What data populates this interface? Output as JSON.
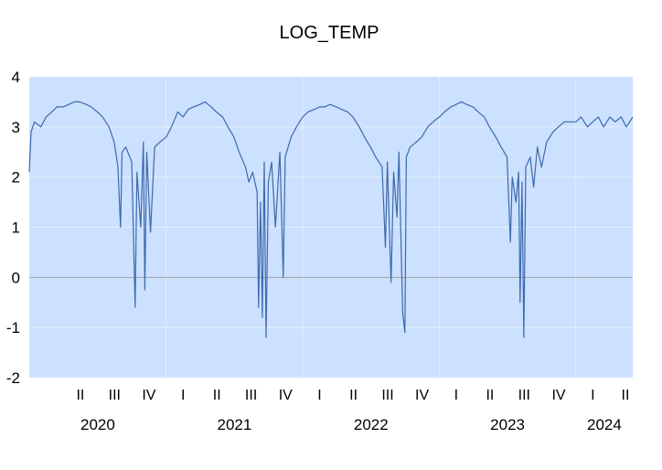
{
  "chart_data": {
    "type": "line",
    "title": "LOG_TEMP",
    "xlabel": "",
    "ylabel": "",
    "ylim": [
      -2,
      4
    ],
    "yticks": [
      -2,
      -1,
      0,
      1,
      2,
      3,
      4
    ],
    "ytick_labels": [
      "-2",
      "-1",
      "0",
      "1",
      "2",
      "3",
      "4"
    ],
    "x_range": [
      "2020-01",
      "2024-06"
    ],
    "quarter_labels": [
      "II",
      "III",
      "IV",
      "I",
      "II",
      "III",
      "IV",
      "I",
      "II",
      "III",
      "IV",
      "I",
      "II",
      "III",
      "IV",
      "I",
      "II"
    ],
    "year_labels": [
      "2020",
      "2021",
      "2022",
      "2023",
      "2024"
    ],
    "grid": true,
    "colors": {
      "plot_background": "#cce0ff",
      "line": "#3d6aad",
      "grid": "#e6effb",
      "zero_line": "#a0a0a0"
    },
    "series": [
      {
        "points": [
          [
            "2020-01-01",
            2.1
          ],
          [
            "2020-01-06",
            2.9
          ],
          [
            "2020-01-15",
            3.1
          ],
          [
            "2020-02-01",
            3.0
          ],
          [
            "2020-02-15",
            3.2
          ],
          [
            "2020-03-01",
            3.3
          ],
          [
            "2020-03-15",
            3.4
          ],
          [
            "2020-04-01",
            3.4
          ],
          [
            "2020-04-15",
            3.45
          ],
          [
            "2020-05-01",
            3.5
          ],
          [
            "2020-05-15",
            3.5
          ],
          [
            "2020-06-01",
            3.45
          ],
          [
            "2020-06-15",
            3.4
          ],
          [
            "2020-07-01",
            3.3
          ],
          [
            "2020-07-15",
            3.2
          ],
          [
            "2020-08-01",
            3.0
          ],
          [
            "2020-08-15",
            2.7
          ],
          [
            "2020-08-25",
            2.2
          ],
          [
            "2020-09-01",
            1.0
          ],
          [
            "2020-09-05",
            2.5
          ],
          [
            "2020-09-15",
            2.6
          ],
          [
            "2020-10-01",
            2.3
          ],
          [
            "2020-10-10",
            -0.6
          ],
          [
            "2020-10-15",
            2.1
          ],
          [
            "2020-10-25",
            1.0
          ],
          [
            "2020-11-01",
            2.7
          ],
          [
            "2020-11-05",
            -0.25
          ],
          [
            "2020-11-10",
            2.5
          ],
          [
            "2020-11-20",
            0.9
          ],
          [
            "2020-12-01",
            2.6
          ],
          [
            "2020-12-15",
            2.7
          ],
          [
            "2021-01-01",
            2.8
          ],
          [
            "2021-01-15",
            3.0
          ],
          [
            "2021-02-01",
            3.3
          ],
          [
            "2021-02-15",
            3.2
          ],
          [
            "2021-03-01",
            3.35
          ],
          [
            "2021-03-15",
            3.4
          ],
          [
            "2021-04-01",
            3.45
          ],
          [
            "2021-04-15",
            3.5
          ],
          [
            "2021-05-01",
            3.4
          ],
          [
            "2021-05-15",
            3.3
          ],
          [
            "2021-06-01",
            3.2
          ],
          [
            "2021-06-15",
            3.0
          ],
          [
            "2021-07-01",
            2.8
          ],
          [
            "2021-07-15",
            2.5
          ],
          [
            "2021-08-01",
            2.2
          ],
          [
            "2021-08-10",
            1.9
          ],
          [
            "2021-08-20",
            2.1
          ],
          [
            "2021-09-01",
            1.7
          ],
          [
            "2021-09-05",
            -0.6
          ],
          [
            "2021-09-10",
            1.5
          ],
          [
            "2021-09-15",
            -0.8
          ],
          [
            "2021-09-20",
            2.3
          ],
          [
            "2021-09-25",
            -1.2
          ],
          [
            "2021-10-01",
            1.9
          ],
          [
            "2021-10-10",
            2.3
          ],
          [
            "2021-10-20",
            1.0
          ],
          [
            "2021-11-01",
            2.5
          ],
          [
            "2021-11-10",
            0.0
          ],
          [
            "2021-11-15",
            2.4
          ],
          [
            "2021-12-01",
            2.8
          ],
          [
            "2021-12-15",
            3.0
          ],
          [
            "2022-01-01",
            3.2
          ],
          [
            "2022-01-15",
            3.3
          ],
          [
            "2022-02-01",
            3.35
          ],
          [
            "2022-02-15",
            3.4
          ],
          [
            "2022-03-01",
            3.4
          ],
          [
            "2022-03-15",
            3.45
          ],
          [
            "2022-04-01",
            3.4
          ],
          [
            "2022-04-15",
            3.35
          ],
          [
            "2022-05-01",
            3.3
          ],
          [
            "2022-05-15",
            3.2
          ],
          [
            "2022-06-01",
            3.0
          ],
          [
            "2022-06-15",
            2.8
          ],
          [
            "2022-07-01",
            2.6
          ],
          [
            "2022-07-15",
            2.4
          ],
          [
            "2022-08-01",
            2.2
          ],
          [
            "2022-08-10",
            0.6
          ],
          [
            "2022-08-15",
            2.3
          ],
          [
            "2022-08-25",
            -0.1
          ],
          [
            "2022-09-01",
            2.1
          ],
          [
            "2022-09-10",
            1.2
          ],
          [
            "2022-09-15",
            2.5
          ],
          [
            "2022-09-25",
            -0.7
          ],
          [
            "2022-10-01",
            -1.1
          ],
          [
            "2022-10-05",
            2.4
          ],
          [
            "2022-10-15",
            2.6
          ],
          [
            "2022-11-01",
            2.7
          ],
          [
            "2022-11-15",
            2.8
          ],
          [
            "2022-12-01",
            3.0
          ],
          [
            "2022-12-15",
            3.1
          ],
          [
            "2023-01-01",
            3.2
          ],
          [
            "2023-01-15",
            3.3
          ],
          [
            "2023-02-01",
            3.4
          ],
          [
            "2023-02-15",
            3.45
          ],
          [
            "2023-03-01",
            3.5
          ],
          [
            "2023-03-15",
            3.45
          ],
          [
            "2023-04-01",
            3.4
          ],
          [
            "2023-04-15",
            3.3
          ],
          [
            "2023-05-01",
            3.2
          ],
          [
            "2023-05-15",
            3.0
          ],
          [
            "2023-06-01",
            2.8
          ],
          [
            "2023-06-15",
            2.6
          ],
          [
            "2023-07-01",
            2.4
          ],
          [
            "2023-07-10",
            0.7
          ],
          [
            "2023-07-15",
            2.0
          ],
          [
            "2023-07-25",
            1.5
          ],
          [
            "2023-08-01",
            2.1
          ],
          [
            "2023-08-05",
            -0.5
          ],
          [
            "2023-08-10",
            1.9
          ],
          [
            "2023-08-15",
            -1.2
          ],
          [
            "2023-08-20",
            2.2
          ],
          [
            "2023-09-01",
            2.4
          ],
          [
            "2023-09-10",
            1.8
          ],
          [
            "2023-09-20",
            2.6
          ],
          [
            "2023-10-01",
            2.2
          ],
          [
            "2023-10-15",
            2.7
          ],
          [
            "2023-11-01",
            2.9
          ],
          [
            "2023-11-15",
            3.0
          ],
          [
            "2023-12-01",
            3.1
          ],
          [
            "2024-01-01",
            3.1
          ],
          [
            "2024-01-15",
            3.2
          ],
          [
            "2024-02-01",
            3.0
          ],
          [
            "2024-02-15",
            3.1
          ],
          [
            "2024-03-01",
            3.2
          ],
          [
            "2024-03-15",
            3.0
          ],
          [
            "2024-04-01",
            3.2
          ],
          [
            "2024-04-15",
            3.1
          ],
          [
            "2024-05-01",
            3.2
          ],
          [
            "2024-05-15",
            3.0
          ],
          [
            "2024-06-01",
            3.2
          ]
        ]
      }
    ]
  }
}
